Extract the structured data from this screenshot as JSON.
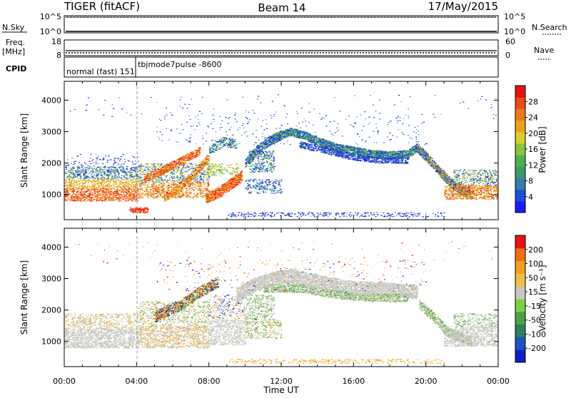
{
  "header": {
    "station": "TIGER (fitACF)",
    "beam": "Beam 14",
    "date": "17/May/2015"
  },
  "top_panels": {
    "nsky_label": "N.Sky",
    "nsearch_label": "N.Search",
    "nsky_ticks": [
      "10^5",
      "10^0"
    ],
    "nsearch_ticks": [
      "10^5",
      "10^0"
    ],
    "freq_label": "Freq.",
    "freq_unit": "[MHz]",
    "freq_ticks": [
      "18",
      "8"
    ],
    "nave_label": "Nave",
    "nave_ticks": [
      "60",
      "0"
    ],
    "cpid_label": "CPID",
    "cpid_text_1": "normal (fast) 151",
    "cpid_text_2": "tbjmode7pulse -8600"
  },
  "chart_data": [
    {
      "type": "heatmap",
      "name": "power",
      "ylabel": "Slant Range [km]",
      "yticks": [
        "1000",
        "2000",
        "3000",
        "4000"
      ],
      "ylim": [
        200,
        4600
      ],
      "xlabel": "",
      "xticks": [
        "00:00",
        "04:00",
        "08:00",
        "12:00",
        "16:00",
        "20:00",
        "00:00"
      ],
      "xlim": [
        0,
        24
      ],
      "colorbar": {
        "label": "Power [dB]",
        "ticks": [
          "4",
          "8",
          "12",
          "16",
          "20",
          "24",
          "28"
        ],
        "colors": [
          "#1a1aff",
          "#1f4fd6",
          "#2f7fa8",
          "#3a9a6a",
          "#4fb04f",
          "#8cc43a",
          "#d8d02a",
          "#f0a020",
          "#f07818",
          "#ee4a14",
          "#e81010"
        ]
      }
    },
    {
      "type": "heatmap",
      "name": "velocity",
      "ylabel": "Slant Range [km]",
      "yticks": [
        "1000",
        "2000",
        "3000",
        "4000"
      ],
      "ylim": [
        200,
        4600
      ],
      "xlabel": "Time UT",
      "xticks": [
        "00:00",
        "04:00",
        "08:00",
        "12:00",
        "16:00",
        "20:00",
        "00:00"
      ],
      "xlim": [
        0,
        24
      ],
      "colorbar": {
        "label": "Velocity [m s⁻¹]",
        "ticks": [
          "200",
          "100",
          "50",
          "15",
          "-15",
          "-50",
          "-100",
          "-200"
        ],
        "colors": [
          "#1020c8",
          "#2050c0",
          "#2f7f60",
          "#4fa040",
          "#7ccf40",
          "#c8c8c0",
          "#f0c040",
          "#f0a020",
          "#f07010",
          "#e81010"
        ]
      }
    }
  ]
}
